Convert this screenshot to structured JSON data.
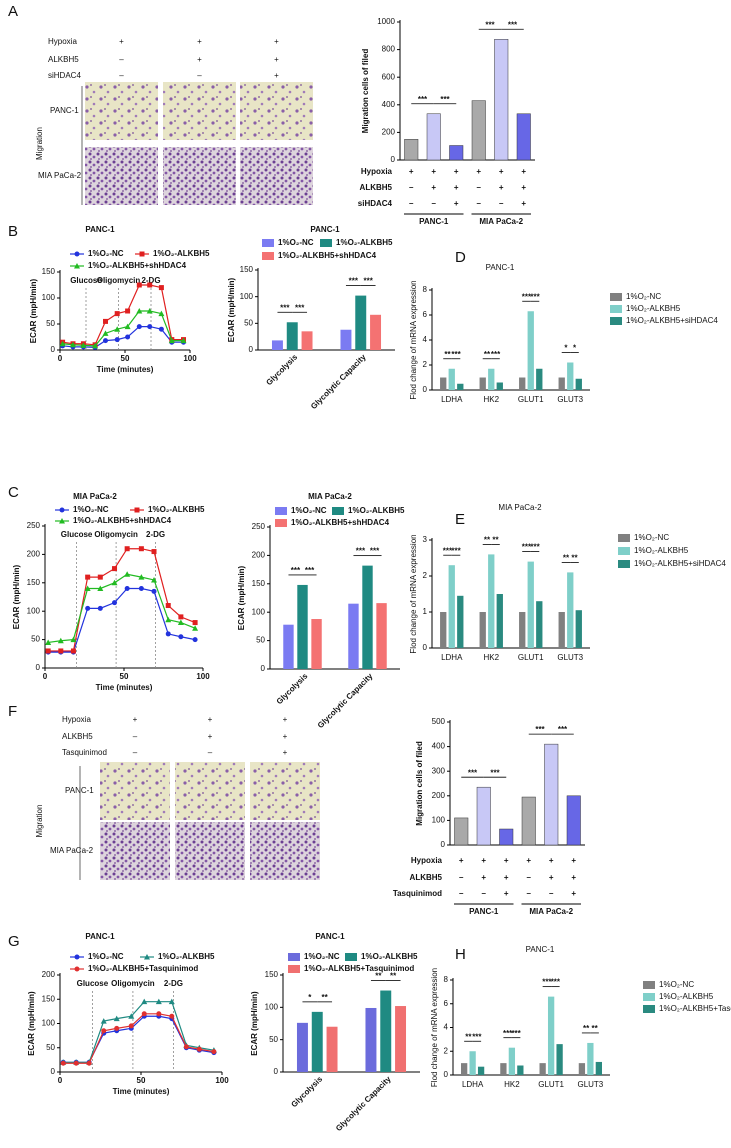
{
  "panels": [
    "A",
    "B",
    "C",
    "D",
    "E",
    "F",
    "G",
    "H"
  ],
  "image_grids": [
    {
      "conditions": [
        {
          "name": "Hypoxia",
          "marks": [
            "+",
            "+",
            "+"
          ]
        },
        {
          "name": "ALKBH5",
          "marks": [
            "–",
            "+",
            "+"
          ]
        },
        {
          "name": "siHDAC4",
          "marks": [
            "–",
            "–",
            "+"
          ]
        }
      ],
      "rows": [
        "PANC-1",
        "MIA PaCa-2"
      ],
      "side_label": "Migration"
    },
    {
      "conditions": [
        {
          "name": "Hypoxia",
          "marks": [
            "+",
            "+",
            "+"
          ]
        },
        {
          "name": "ALKBH5",
          "marks": [
            "–",
            "+",
            "+"
          ]
        },
        {
          "name": "Tasquinimod",
          "marks": [
            "–",
            "–",
            "+"
          ]
        }
      ],
      "rows": [
        "PANC-1",
        "MIA PaCa-2"
      ],
      "side_label": "Migration"
    }
  ],
  "chart_data": [
    {
      "type": "bar",
      "y_label": "Migration cells of filed",
      "values": [
        150,
        335,
        105,
        430,
        875,
        335
      ],
      "colors": [
        "#a9a9a9",
        "#c8c8f6",
        "#6767e6",
        "#a9a9a9",
        "#c8c8f6",
        "#6767e6"
      ],
      "ylim": [
        0,
        1000
      ],
      "yticks": [
        0,
        200,
        400,
        600,
        800,
        1000
      ],
      "conditions": [
        {
          "name": "Hypoxia",
          "marks": [
            "+",
            "+",
            "+",
            "+",
            "+",
            "+"
          ]
        },
        {
          "name": "ALKBH5",
          "marks": [
            "–",
            "+",
            "+",
            "–",
            "+",
            "+"
          ]
        },
        {
          "name": "siHDAC4",
          "marks": [
            "–",
            "–",
            "+",
            "–",
            "–",
            "+"
          ]
        }
      ],
      "groups": [
        "PANC-1",
        "MIA PaCa-2"
      ],
      "significance": [
        {
          "text": "***",
          "bars": [
            0,
            1
          ]
        },
        {
          "text": "***",
          "bars": [
            1,
            2
          ]
        },
        {
          "text": "***",
          "bars": [
            3,
            4
          ]
        },
        {
          "text": "***",
          "bars": [
            4,
            5
          ]
        }
      ]
    },
    {
      "type": "line",
      "title": "PANC-1",
      "y_label": "ECAR (mpH/min)",
      "x_label": "Time (minutes)",
      "x": [
        2,
        10,
        18,
        27,
        35,
        44,
        52,
        61,
        69,
        78,
        86,
        95
      ],
      "series": [
        {
          "name": "1%O₂-NC",
          "color": "#2233dd",
          "marker": "circle",
          "values": [
            8,
            6,
            6,
            5,
            18,
            20,
            25,
            45,
            45,
            40,
            15,
            15
          ]
        },
        {
          "name": "1%O₂-ALKBH5",
          "color": "#e02020",
          "marker": "square",
          "values": [
            15,
            12,
            12,
            10,
            55,
            70,
            75,
            125,
            125,
            120,
            20,
            20
          ]
        },
        {
          "name": "1%O₂-ALKBH5+shHDAC4",
          "color": "#22bb22",
          "marker": "triangle",
          "values": [
            12,
            10,
            9,
            8,
            32,
            40,
            45,
            75,
            75,
            70,
            18,
            18
          ]
        }
      ],
      "events": [
        {
          "x": 20,
          "label": "Glucose"
        },
        {
          "x": 45,
          "label": "Oligomycin"
        },
        {
          "x": 70,
          "label": "2-DG"
        }
      ],
      "xlim": [
        0,
        100
      ],
      "xticks": [
        0,
        50,
        100
      ],
      "ylim": [
        0,
        150
      ],
      "yticks": [
        0,
        50,
        100,
        150
      ]
    },
    {
      "type": "bar",
      "title": "PANC-1",
      "y_label": "ECAR (mpH/min)",
      "categories": [
        "Glycolysis",
        "Glycolytic Capacity"
      ],
      "series": [
        {
          "name": "1%O₂-NC",
          "color": "#7b7bf2",
          "values": [
            18,
            38
          ]
        },
        {
          "name": "1%O₂-ALKBH5",
          "color": "#1f8a82",
          "values": [
            52,
            102
          ]
        },
        {
          "name": "1%O₂-ALKBH5+shHDAC4",
          "color": "#f47272",
          "values": [
            35,
            66
          ]
        }
      ],
      "ylim": [
        0,
        150
      ],
      "yticks": [
        0,
        50,
        100,
        150
      ],
      "significance": [
        {
          "text": "***",
          "bars": [
            0,
            1
          ]
        },
        {
          "text": "***",
          "bars": [
            1,
            2
          ]
        },
        {
          "text": "***",
          "bars": [
            3,
            4
          ]
        },
        {
          "text": "***",
          "bars": [
            4,
            5
          ]
        }
      ]
    },
    {
      "type": "bar",
      "title": "PANC-1",
      "y_label": "Flod change of mRNA expression",
      "categories": [
        "LDHA",
        "HK2",
        "GLUT1",
        "GLUT3"
      ],
      "series": [
        {
          "name": "1%O₂-NC",
          "color": "#808080",
          "values": [
            1,
            1,
            1,
            1
          ]
        },
        {
          "name": "1%O₂-ALKBH5",
          "color": "#7fcfc9",
          "values": [
            1.7,
            1.7,
            6.3,
            2.2
          ]
        },
        {
          "name": "1%O₂-ALKBH5+siHDAC4",
          "color": "#2a8a80",
          "values": [
            0.5,
            0.6,
            1.7,
            0.9
          ]
        }
      ],
      "ylim": [
        0,
        8
      ],
      "yticks": [
        0,
        2,
        4,
        6,
        8
      ],
      "significance": [
        {
          "text": "**",
          "bars": [
            0,
            1
          ]
        },
        {
          "text": "***",
          "bars": [
            1,
            2
          ]
        },
        {
          "text": "**",
          "bars": [
            3,
            4
          ]
        },
        {
          "text": "***",
          "bars": [
            4,
            5
          ]
        },
        {
          "text": "***",
          "bars": [
            6,
            7
          ]
        },
        {
          "text": "***",
          "bars": [
            7,
            8
          ]
        },
        {
          "text": "*",
          "bars": [
            9,
            10
          ]
        },
        {
          "text": "*",
          "bars": [
            10,
            11
          ]
        }
      ]
    },
    {
      "type": "line",
      "title": "MIA PaCa-2",
      "y_label": "ECAR (mpH/min)",
      "x_label": "Time (minutes)",
      "x": [
        2,
        10,
        18,
        27,
        35,
        44,
        52,
        61,
        69,
        78,
        86,
        95
      ],
      "series": [
        {
          "name": "1%O₂-NC",
          "color": "#2233dd",
          "marker": "circle",
          "values": [
            28,
            28,
            28,
            105,
            105,
            115,
            140,
            140,
            135,
            60,
            55,
            50
          ]
        },
        {
          "name": "1%O₂-ALKBH5",
          "color": "#e02020",
          "marker": "square",
          "values": [
            30,
            30,
            30,
            160,
            160,
            175,
            210,
            210,
            205,
            110,
            90,
            80
          ]
        },
        {
          "name": "1%O₂-ALKBH5+shHDAC4",
          "color": "#22bb22",
          "marker": "triangle",
          "values": [
            45,
            48,
            50,
            140,
            140,
            150,
            165,
            160,
            155,
            85,
            80,
            70
          ]
        }
      ],
      "events": [
        {
          "x": 20,
          "label": "Glucose"
        },
        {
          "x": 45,
          "label": "Oligomycin"
        },
        {
          "x": 70,
          "label": "2-DG"
        }
      ],
      "xlim": [
        0,
        100
      ],
      "xticks": [
        0,
        50,
        100
      ],
      "ylim": [
        0,
        250
      ],
      "yticks": [
        0,
        50,
        100,
        150,
        200,
        250
      ]
    },
    {
      "type": "bar",
      "title": "MIA PaCa-2",
      "y_label": "ECAR (mpH/min)",
      "categories": [
        "Glycolysis",
        "Glycolytic Capacity"
      ],
      "series": [
        {
          "name": "1%O₂-NC",
          "color": "#7b7bf2",
          "values": [
            78,
            115
          ]
        },
        {
          "name": "1%O₂-ALKBH5",
          "color": "#1f8a82",
          "values": [
            148,
            182
          ]
        },
        {
          "name": "1%O₂-ALKBH5+shHDAC4",
          "color": "#f47272",
          "values": [
            88,
            116
          ]
        }
      ],
      "ylim": [
        0,
        250
      ],
      "yticks": [
        0,
        50,
        100,
        150,
        200,
        250
      ],
      "significance": [
        {
          "text": "***",
          "bars": [
            0,
            1
          ]
        },
        {
          "text": "***",
          "bars": [
            1,
            2
          ]
        },
        {
          "text": "***",
          "bars": [
            3,
            4
          ]
        },
        {
          "text": "***",
          "bars": [
            4,
            5
          ]
        }
      ]
    },
    {
      "type": "bar",
      "title": "MIA PaCa-2",
      "y_label": "Flod change of mRNA expression",
      "categories": [
        "LDHA",
        "HK2",
        "GLUT1",
        "GLUT3"
      ],
      "series": [
        {
          "name": "1%O₂-NC",
          "color": "#808080",
          "values": [
            1,
            1,
            1,
            1
          ]
        },
        {
          "name": "1%O₂-ALKBH5",
          "color": "#7fcfc9",
          "values": [
            2.3,
            2.6,
            2.4,
            2.1
          ]
        },
        {
          "name": "1%O₂-ALKBH5+siHDAC4",
          "color": "#2a8a80",
          "values": [
            1.45,
            1.5,
            1.3,
            1.05
          ]
        }
      ],
      "ylim": [
        0,
        3
      ],
      "yticks": [
        0,
        1,
        2,
        3
      ],
      "significance": [
        {
          "text": "***",
          "bars": [
            0,
            1
          ]
        },
        {
          "text": "***",
          "bars": [
            1,
            2
          ]
        },
        {
          "text": "**",
          "bars": [
            3,
            4
          ]
        },
        {
          "text": "**",
          "bars": [
            4,
            5
          ]
        },
        {
          "text": "***",
          "bars": [
            6,
            7
          ]
        },
        {
          "text": "***",
          "bars": [
            7,
            8
          ]
        },
        {
          "text": "**",
          "bars": [
            9,
            10
          ]
        },
        {
          "text": "**",
          "bars": [
            10,
            11
          ]
        }
      ]
    },
    {
      "type": "bar",
      "y_label": "Migration cells of filed",
      "values": [
        110,
        235,
        65,
        195,
        410,
        200
      ],
      "colors": [
        "#a9a9a9",
        "#c8c8f6",
        "#6767e6",
        "#a9a9a9",
        "#c8c8f6",
        "#6767e6"
      ],
      "ylim": [
        0,
        500
      ],
      "yticks": [
        0,
        100,
        200,
        300,
        400,
        500
      ],
      "conditions": [
        {
          "name": "Hypoxia",
          "marks": [
            "+",
            "+",
            "+",
            "+",
            "+",
            "+"
          ]
        },
        {
          "name": "ALKBH5",
          "marks": [
            "–",
            "+",
            "+",
            "–",
            "+",
            "+"
          ]
        },
        {
          "name": "Tasquinimod",
          "marks": [
            "–",
            "–",
            "+",
            "–",
            "–",
            "+"
          ]
        }
      ],
      "groups": [
        "PANC-1",
        "MIA PaCa-2"
      ],
      "significance": [
        {
          "text": "***",
          "bars": [
            0,
            1
          ]
        },
        {
          "text": "***",
          "bars": [
            1,
            2
          ]
        },
        {
          "text": "***",
          "bars": [
            3,
            4
          ]
        },
        {
          "text": "***",
          "bars": [
            4,
            5
          ]
        }
      ]
    },
    {
      "type": "line",
      "title": "PANC-1",
      "y_label": "ECAR (mpH/min)",
      "x_label": "Time (minutes)",
      "x": [
        2,
        10,
        18,
        27,
        35,
        44,
        52,
        61,
        69,
        78,
        86,
        95
      ],
      "series": [
        {
          "name": "1%O₂-NC",
          "color": "#2233dd",
          "marker": "circle",
          "values": [
            20,
            20,
            20,
            80,
            85,
            90,
            115,
            115,
            110,
            50,
            45,
            40
          ]
        },
        {
          "name": "1%O₂-ALKBH5",
          "color": "#1f8a82",
          "marker": "triangle",
          "values": [
            20,
            20,
            20,
            105,
            110,
            115,
            145,
            145,
            145,
            55,
            50,
            45
          ]
        },
        {
          "name": "1%O₂-ALKBH5+Tasquinimod",
          "color": "#e03030",
          "marker": "circle",
          "values": [
            18,
            18,
            18,
            85,
            90,
            95,
            120,
            120,
            115,
            52,
            47,
            42
          ]
        }
      ],
      "events": [
        {
          "x": 20,
          "label": "Glucose"
        },
        {
          "x": 45,
          "label": "Oligomycin"
        },
        {
          "x": 70,
          "label": "2-DG"
        }
      ],
      "xlim": [
        0,
        100
      ],
      "xticks": [
        0,
        50,
        100
      ],
      "ylim": [
        0,
        200
      ],
      "yticks": [
        0,
        50,
        100,
        150,
        200
      ]
    },
    {
      "type": "bar",
      "title": "PANC-1",
      "y_label": "ECAR (mpH/min)",
      "categories": [
        "Glycolysis",
        "Glycolytic Capacity"
      ],
      "series": [
        {
          "name": "1%O₂-NC",
          "color": "#6b6bdc",
          "values": [
            76,
            99
          ]
        },
        {
          "name": "1%O₂-ALKBH5",
          "color": "#1f8a82",
          "values": [
            93,
            126
          ]
        },
        {
          "name": "1%O₂-ALKBH5+Tasquinimod",
          "color": "#f07070",
          "values": [
            70,
            102
          ]
        }
      ],
      "ylim": [
        0,
        150
      ],
      "yticks": [
        0,
        50,
        100,
        150
      ],
      "significance": [
        {
          "text": "*",
          "bars": [
            0,
            1
          ]
        },
        {
          "text": "**",
          "bars": [
            1,
            2
          ]
        },
        {
          "text": "**",
          "bars": [
            3,
            4
          ]
        },
        {
          "text": "**",
          "bars": [
            4,
            5
          ]
        }
      ]
    },
    {
      "type": "bar",
      "title": "PANC-1",
      "y_label": "Flod change of mRNA expression",
      "categories": [
        "LDHA",
        "HK2",
        "GLUT1",
        "GLUT3"
      ],
      "series": [
        {
          "name": "1%O₂-NC",
          "color": "#808080",
          "values": [
            1,
            1,
            1,
            1
          ]
        },
        {
          "name": "1%O₂-ALKBH5",
          "color": "#7fcfc9",
          "values": [
            2,
            2.3,
            6.6,
            2.7
          ]
        },
        {
          "name": "1%O₂-ALKBH5+Tasquinimod",
          "color": "#2a8a80",
          "values": [
            0.7,
            0.8,
            2.6,
            1.1
          ]
        }
      ],
      "ylim": [
        0,
        8
      ],
      "yticks": [
        0,
        2,
        4,
        6,
        8
      ],
      "significance": [
        {
          "text": "**",
          "bars": [
            0,
            1
          ]
        },
        {
          "text": "***",
          "bars": [
            1,
            2
          ]
        },
        {
          "text": "***",
          "bars": [
            3,
            4
          ]
        },
        {
          "text": "***",
          "bars": [
            4,
            5
          ]
        },
        {
          "text": "***",
          "bars": [
            6,
            7
          ]
        },
        {
          "text": "***",
          "bars": [
            7,
            8
          ]
        },
        {
          "text": "**",
          "bars": [
            9,
            10
          ]
        },
        {
          "text": "**",
          "bars": [
            10,
            11
          ]
        }
      ]
    }
  ]
}
